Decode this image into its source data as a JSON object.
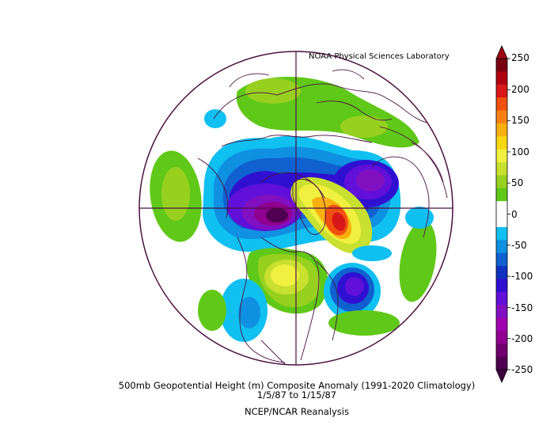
{
  "credit": "NOAA Physical Sciences Laboratory",
  "title": {
    "line1": "500mb Geopotential Height (m) Composite Anomaly (1991-2020 Climatology)",
    "line2": "1/5/87  to 1/15/87",
    "line3": "NCEP/NCAR Reanalysis"
  },
  "colorbar": {
    "labels": [
      "250",
      "200",
      "150",
      "100",
      "50",
      "0",
      "-50",
      "-100",
      "-150",
      "-200",
      "-250"
    ],
    "colors": [
      "#7a0010",
      "#b00010",
      "#d81818",
      "#f05010",
      "#f88010",
      "#f8b010",
      "#f8d810",
      "#f0f040",
      "#c8e030",
      "#98d020",
      "#60c818",
      "#ffffff",
      "#ffffff",
      "#10c0f0",
      "#1090e0",
      "#1060d0",
      "#1030c0",
      "#3010d0",
      "#6010d8",
      "#8010c0",
      "#a000b0",
      "#900090",
      "#700070",
      "#500050"
    ],
    "underflow_color": "#400040",
    "overflow_color": "#a00010"
  },
  "map": {
    "projection": "north-polar-stereographic",
    "boundary_color": "#4a1040",
    "coast_color": "#4a1040"
  }
}
